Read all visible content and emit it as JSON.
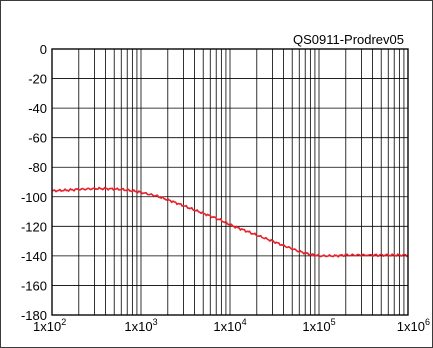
{
  "chart_data": {
    "type": "line",
    "title": "QS0911-Prodrev05",
    "xlabel": "",
    "ylabel": "",
    "x_scale": "log",
    "xlim": [
      100,
      1000000
    ],
    "ylim": [
      -180,
      0
    ],
    "grid": true,
    "x_ticks": [
      {
        "value": 100,
        "base": "1x10",
        "exp": "2"
      },
      {
        "value": 1000,
        "base": "1x10",
        "exp": "3"
      },
      {
        "value": 10000,
        "base": "1x10",
        "exp": "4"
      },
      {
        "value": 100000,
        "base": "1x10",
        "exp": "5"
      },
      {
        "value": 1000000,
        "base": "1x10",
        "exp": "6"
      }
    ],
    "y_ticks": [
      0,
      -20,
      -40,
      -60,
      -80,
      -100,
      -120,
      -140,
      -160,
      -180
    ],
    "series": [
      {
        "color": "#e8202a",
        "x": [
          100,
          150,
          200,
          300,
          400,
          600,
          800,
          1000,
          1500,
          2000,
          3000,
          4000,
          6000,
          8000,
          10000,
          15000,
          20000,
          30000,
          40000,
          60000,
          80000,
          100000,
          150000,
          200000,
          300000,
          500000,
          700000,
          1000000
        ],
        "y": [
          -96,
          -95.5,
          -95,
          -94.5,
          -94.5,
          -95,
          -96,
          -97,
          -99.5,
          -102,
          -106,
          -109,
          -113,
          -116,
          -119,
          -123,
          -126,
          -130,
          -133,
          -137,
          -139,
          -140,
          -140,
          -139.5,
          -139.5,
          -139.5,
          -139.5,
          -139.5
        ]
      }
    ]
  }
}
